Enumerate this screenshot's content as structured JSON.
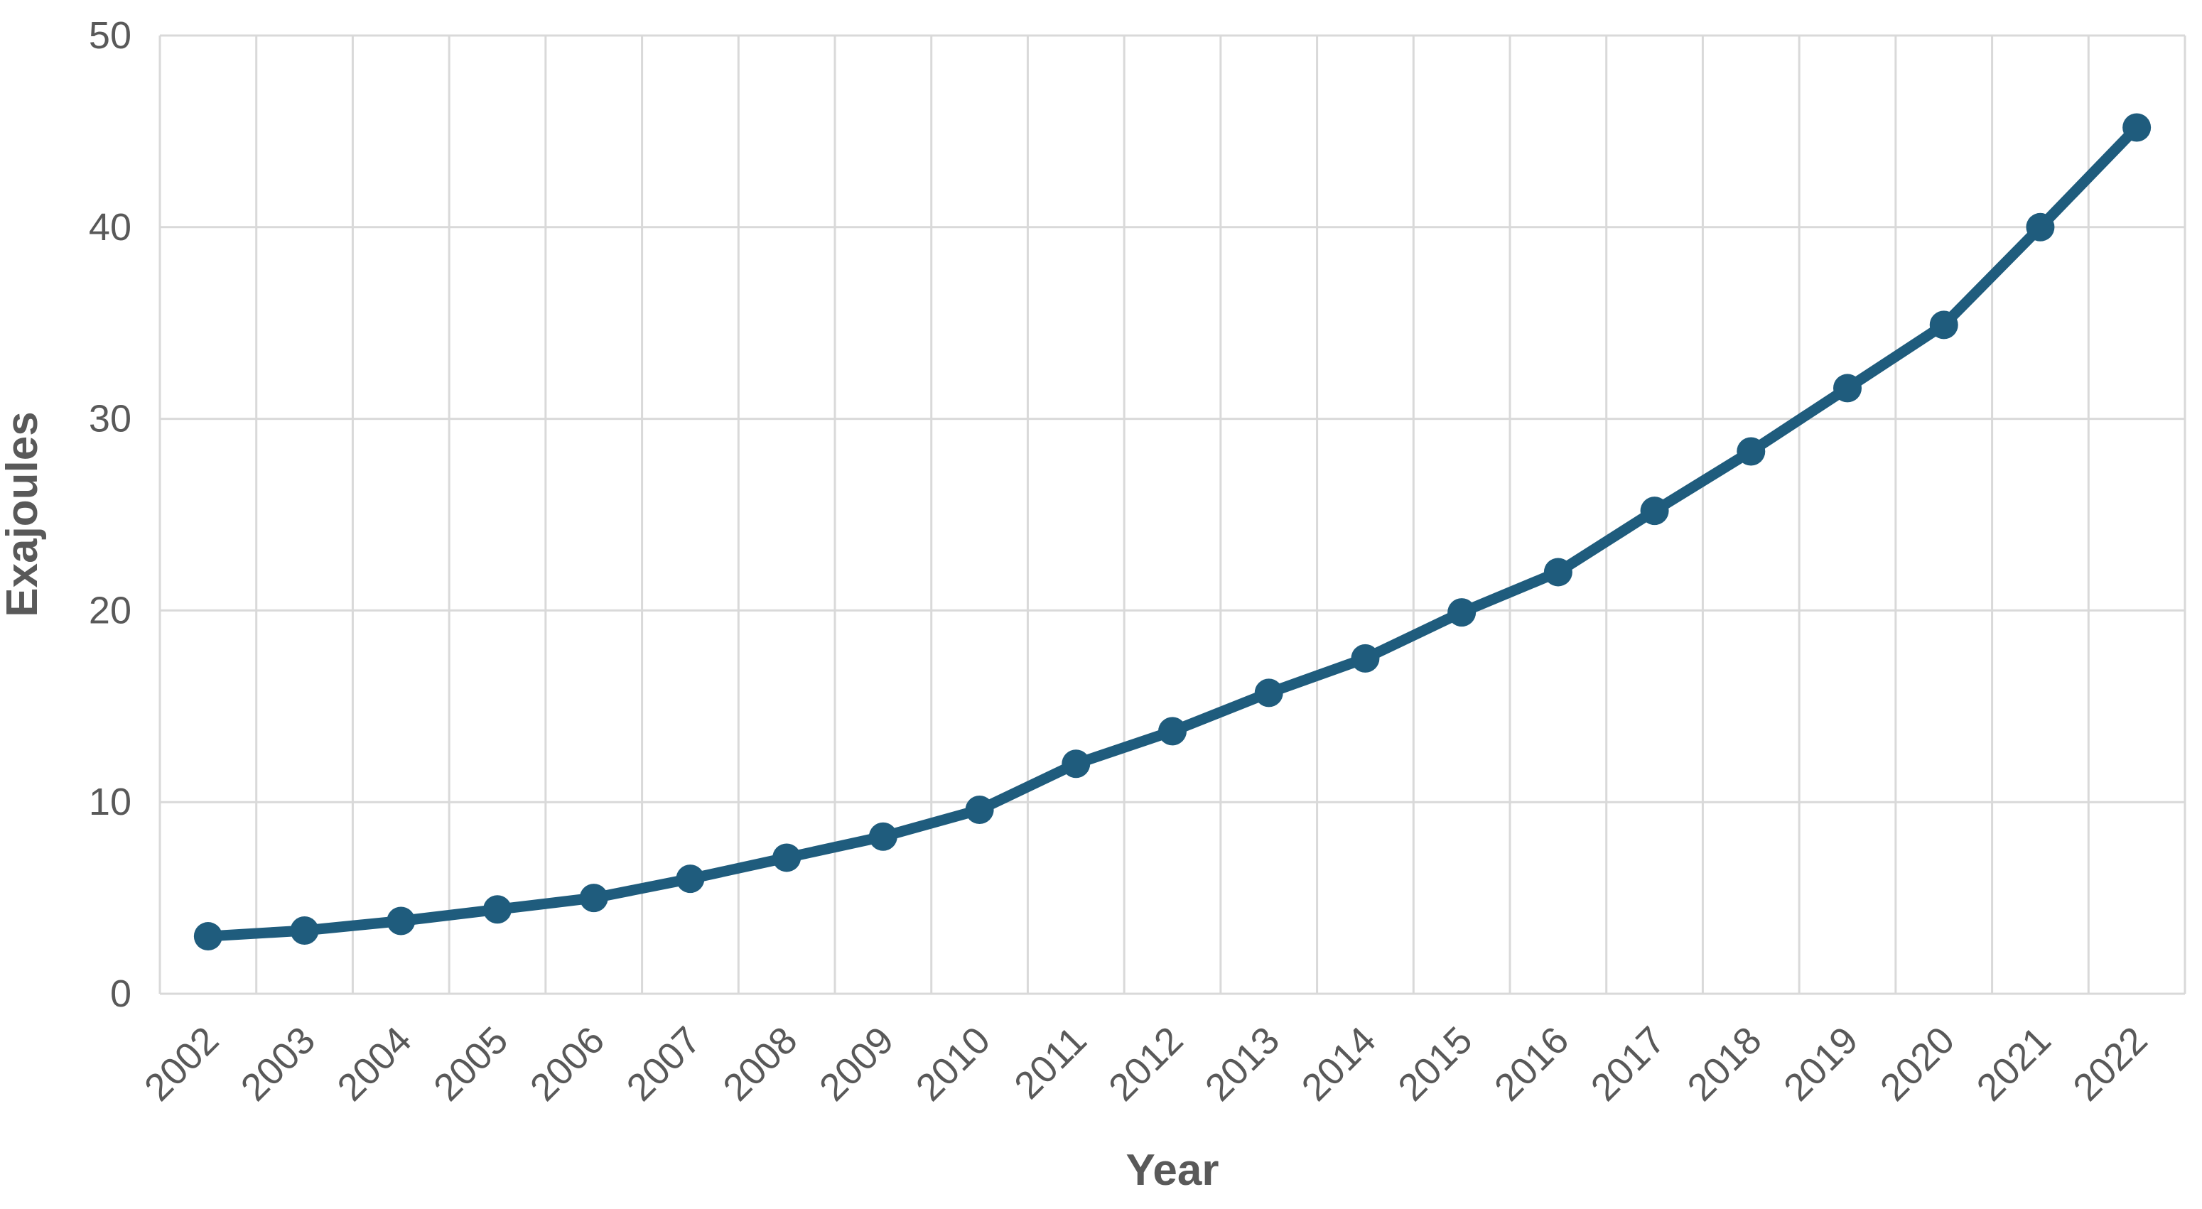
{
  "chart_data": {
    "type": "line",
    "title": "",
    "xlabel": "Year",
    "ylabel": "Exajoules",
    "categories": [
      "2002",
      "2003",
      "2004",
      "2005",
      "2006",
      "2007",
      "2008",
      "2009",
      "2010",
      "2011",
      "2012",
      "2013",
      "2014",
      "2015",
      "2016",
      "2017",
      "2018",
      "2019",
      "2020",
      "2021",
      "2022"
    ],
    "series": [
      {
        "name": "Exajoules",
        "values": [
          3.0,
          3.3,
          3.8,
          4.4,
          5.0,
          6.0,
          7.1,
          8.2,
          9.6,
          12.0,
          13.7,
          15.7,
          17.5,
          19.9,
          22.0,
          25.2,
          28.3,
          31.6,
          34.9,
          40.0,
          45.2
        ]
      }
    ],
    "ylim": [
      0,
      50
    ],
    "yticks": [
      0,
      10,
      20,
      30,
      40,
      50
    ],
    "grid": true,
    "legend": "none",
    "colors": {
      "line": "#1f5c7d",
      "marker": "#1f5c7d",
      "gridline": "#d9d9d9",
      "tick_text": "#595959",
      "axis_title_text": "#595959",
      "background": "#ffffff"
    },
    "marker_style": "circle",
    "x_tick_rotation_deg": 45
  }
}
